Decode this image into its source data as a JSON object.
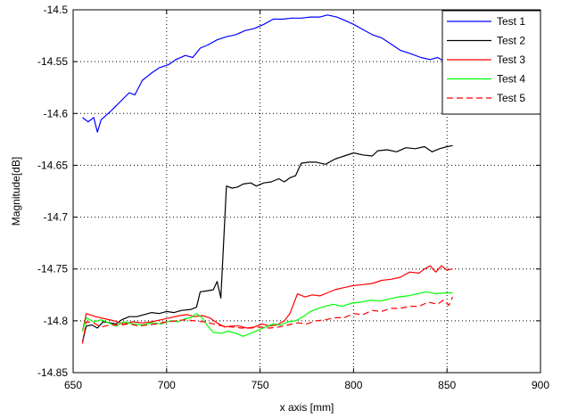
{
  "chart_data": {
    "type": "line",
    "title": "",
    "xlabel": "x axis [mm]",
    "ylabel": "Magnitude[dB]",
    "xlim": [
      650,
      900
    ],
    "ylim": [
      -14.85,
      -14.5
    ],
    "xticks": [
      650,
      700,
      750,
      800,
      850,
      900
    ],
    "xtick_labels": [
      "650",
      "700",
      "750",
      "800",
      "850",
      "900"
    ],
    "yticks": [
      -14.85,
      -14.8,
      -14.75,
      -14.7,
      -14.65,
      -14.6,
      -14.55,
      -14.5
    ],
    "ytick_labels": [
      "-14.85",
      "-14.8",
      "-14.75",
      "-14.7",
      "-14.65",
      "-14.6",
      "-14.55",
      "-14.5"
    ],
    "grid": true,
    "legend_position": "top-right",
    "series": [
      {
        "name": "Test 1",
        "color": "#0000ff",
        "dash": "solid",
        "points": [
          [
            655,
            -14.604
          ],
          [
            658,
            -14.608
          ],
          [
            661,
            -14.604
          ],
          [
            663,
            -14.618
          ],
          [
            665,
            -14.606
          ],
          [
            670,
            -14.598
          ],
          [
            675,
            -14.589
          ],
          [
            680,
            -14.58
          ],
          [
            683,
            -14.582
          ],
          [
            687,
            -14.568
          ],
          [
            692,
            -14.561
          ],
          [
            696,
            -14.556
          ],
          [
            701,
            -14.553
          ],
          [
            705,
            -14.548
          ],
          [
            710,
            -14.544
          ],
          [
            714,
            -14.546
          ],
          [
            718,
            -14.537
          ],
          [
            722,
            -14.534
          ],
          [
            727,
            -14.529
          ],
          [
            732,
            -14.526
          ],
          [
            737,
            -14.524
          ],
          [
            742,
            -14.52
          ],
          [
            747,
            -14.518
          ],
          [
            752,
            -14.514
          ],
          [
            757,
            -14.509
          ],
          [
            762,
            -14.509
          ],
          [
            767,
            -14.508
          ],
          [
            772,
            -14.508
          ],
          [
            777,
            -14.507
          ],
          [
            782,
            -14.507
          ],
          [
            786,
            -14.505
          ],
          [
            791,
            -14.507
          ],
          [
            795,
            -14.51
          ],
          [
            800,
            -14.514
          ],
          [
            805,
            -14.519
          ],
          [
            810,
            -14.524
          ],
          [
            815,
            -14.527
          ],
          [
            820,
            -14.533
          ],
          [
            825,
            -14.539
          ],
          [
            830,
            -14.542
          ],
          [
            836,
            -14.546
          ],
          [
            841,
            -14.548
          ],
          [
            845,
            -14.546
          ],
          [
            848,
            -14.549
          ]
        ]
      },
      {
        "name": "Test 2",
        "color": "#000000",
        "dash": "solid",
        "points": [
          [
            655,
            -14.82
          ],
          [
            657,
            -14.805
          ],
          [
            660,
            -14.804
          ],
          [
            663,
            -14.807
          ],
          [
            666,
            -14.801
          ],
          [
            670,
            -14.802
          ],
          [
            673,
            -14.803
          ],
          [
            676,
            -14.799
          ],
          [
            680,
            -14.796
          ],
          [
            684,
            -14.796
          ],
          [
            688,
            -14.794
          ],
          [
            692,
            -14.792
          ],
          [
            696,
            -14.793
          ],
          [
            700,
            -14.791
          ],
          [
            704,
            -14.792
          ],
          [
            708,
            -14.79
          ],
          [
            713,
            -14.789
          ],
          [
            716,
            -14.787
          ],
          [
            718,
            -14.772
          ],
          [
            722,
            -14.771
          ],
          [
            725,
            -14.77
          ],
          [
            727,
            -14.762
          ],
          [
            729,
            -14.778
          ],
          [
            732,
            -14.67
          ],
          [
            735,
            -14.672
          ],
          [
            738,
            -14.671
          ],
          [
            741,
            -14.668
          ],
          [
            745,
            -14.667
          ],
          [
            748,
            -14.67
          ],
          [
            752,
            -14.667
          ],
          [
            756,
            -14.666
          ],
          [
            760,
            -14.663
          ],
          [
            763,
            -14.666
          ],
          [
            766,
            -14.662
          ],
          [
            769,
            -14.66
          ],
          [
            772,
            -14.648
          ],
          [
            776,
            -14.647
          ],
          [
            780,
            -14.647
          ],
          [
            785,
            -14.649
          ],
          [
            790,
            -14.644
          ],
          [
            795,
            -14.641
          ],
          [
            800,
            -14.638
          ],
          [
            805,
            -14.64
          ],
          [
            810,
            -14.641
          ],
          [
            813,
            -14.636
          ],
          [
            818,
            -14.635
          ],
          [
            823,
            -14.637
          ],
          [
            828,
            -14.633
          ],
          [
            833,
            -14.634
          ],
          [
            838,
            -14.632
          ],
          [
            842,
            -14.637
          ],
          [
            846,
            -14.634
          ],
          [
            850,
            -14.632
          ],
          [
            853,
            -14.631
          ]
        ]
      },
      {
        "name": "Test 3",
        "color": "#ff0000",
        "dash": "solid",
        "points": [
          [
            655,
            -14.81
          ],
          [
            657,
            -14.793
          ],
          [
            662,
            -14.796
          ],
          [
            667,
            -14.798
          ],
          [
            672,
            -14.8
          ],
          [
            677,
            -14.803
          ],
          [
            682,
            -14.801
          ],
          [
            687,
            -14.802
          ],
          [
            692,
            -14.801
          ],
          [
            697,
            -14.799
          ],
          [
            702,
            -14.797
          ],
          [
            707,
            -14.795
          ],
          [
            711,
            -14.794
          ],
          [
            715,
            -14.796
          ],
          [
            719,
            -14.795
          ],
          [
            723,
            -14.797
          ],
          [
            727,
            -14.802
          ],
          [
            731,
            -14.806
          ],
          [
            735,
            -14.805
          ],
          [
            739,
            -14.805
          ],
          [
            743,
            -14.807
          ],
          [
            747,
            -14.806
          ],
          [
            751,
            -14.803
          ],
          [
            755,
            -14.805
          ],
          [
            759,
            -14.804
          ],
          [
            763,
            -14.8
          ],
          [
            766,
            -14.793
          ],
          [
            770,
            -14.774
          ],
          [
            774,
            -14.777
          ],
          [
            778,
            -14.775
          ],
          [
            782,
            -14.776
          ],
          [
            786,
            -14.773
          ],
          [
            790,
            -14.77
          ],
          [
            795,
            -14.768
          ],
          [
            800,
            -14.766
          ],
          [
            805,
            -14.765
          ],
          [
            810,
            -14.764
          ],
          [
            815,
            -14.761
          ],
          [
            820,
            -14.76
          ],
          [
            825,
            -14.758
          ],
          [
            830,
            -14.753
          ],
          [
            835,
            -14.754
          ],
          [
            838,
            -14.75
          ],
          [
            841,
            -14.747
          ],
          [
            844,
            -14.753
          ],
          [
            847,
            -14.747
          ],
          [
            850,
            -14.751
          ],
          [
            853,
            -14.75
          ]
        ]
      },
      {
        "name": "Test 4",
        "color": "#00ff00",
        "dash": "solid",
        "points": [
          [
            655,
            -14.81
          ],
          [
            657,
            -14.797
          ],
          [
            661,
            -14.801
          ],
          [
            665,
            -14.799
          ],
          [
            669,
            -14.802
          ],
          [
            673,
            -14.805
          ],
          [
            677,
            -14.801
          ],
          [
            682,
            -14.803
          ],
          [
            687,
            -14.804
          ],
          [
            692,
            -14.802
          ],
          [
            697,
            -14.803
          ],
          [
            702,
            -14.8
          ],
          [
            706,
            -14.801
          ],
          [
            710,
            -14.798
          ],
          [
            713,
            -14.797
          ],
          [
            716,
            -14.793
          ],
          [
            719,
            -14.797
          ],
          [
            722,
            -14.805
          ],
          [
            725,
            -14.811
          ],
          [
            729,
            -14.812
          ],
          [
            733,
            -14.81
          ],
          [
            737,
            -14.812
          ],
          [
            741,
            -14.815
          ],
          [
            745,
            -14.812
          ],
          [
            749,
            -14.809
          ],
          [
            753,
            -14.806
          ],
          [
            757,
            -14.803
          ],
          [
            761,
            -14.804
          ],
          [
            765,
            -14.801
          ],
          [
            769,
            -14.8
          ],
          [
            773,
            -14.796
          ],
          [
            777,
            -14.791
          ],
          [
            781,
            -14.788
          ],
          [
            785,
            -14.786
          ],
          [
            789,
            -14.784
          ],
          [
            794,
            -14.786
          ],
          [
            799,
            -14.783
          ],
          [
            804,
            -14.782
          ],
          [
            809,
            -14.78
          ],
          [
            814,
            -14.781
          ],
          [
            819,
            -14.779
          ],
          [
            824,
            -14.777
          ],
          [
            829,
            -14.776
          ],
          [
            834,
            -14.774
          ],
          [
            839,
            -14.772
          ],
          [
            844,
            -14.774
          ],
          [
            849,
            -14.773
          ],
          [
            853,
            -14.773
          ]
        ]
      },
      {
        "name": "Test 5",
        "color": "#ff0000",
        "dash": "dashed",
        "points": [
          [
            655,
            -14.822
          ],
          [
            657,
            -14.801
          ],
          [
            661,
            -14.802
          ],
          [
            665,
            -14.806
          ],
          [
            670,
            -14.804
          ],
          [
            675,
            -14.804
          ],
          [
            680,
            -14.803
          ],
          [
            685,
            -14.805
          ],
          [
            690,
            -14.804
          ],
          [
            695,
            -14.803
          ],
          [
            700,
            -14.801
          ],
          [
            705,
            -14.8
          ],
          [
            710,
            -14.799
          ],
          [
            715,
            -14.8
          ],
          [
            720,
            -14.801
          ],
          [
            725,
            -14.803
          ],
          [
            730,
            -14.805
          ],
          [
            735,
            -14.806
          ],
          [
            740,
            -14.807
          ],
          [
            745,
            -14.807
          ],
          [
            750,
            -14.806
          ],
          [
            755,
            -14.807
          ],
          [
            760,
            -14.806
          ],
          [
            765,
            -14.804
          ],
          [
            770,
            -14.802
          ],
          [
            775,
            -14.803
          ],
          [
            780,
            -14.8
          ],
          [
            785,
            -14.799
          ],
          [
            790,
            -14.797
          ],
          [
            795,
            -14.797
          ],
          [
            800,
            -14.793
          ],
          [
            805,
            -14.794
          ],
          [
            810,
            -14.79
          ],
          [
            815,
            -14.791
          ],
          [
            820,
            -14.788
          ],
          [
            825,
            -14.788
          ],
          [
            830,
            -14.786
          ],
          [
            835,
            -14.786
          ],
          [
            840,
            -14.782
          ],
          [
            845,
            -14.784
          ],
          [
            848,
            -14.78
          ],
          [
            851,
            -14.785
          ],
          [
            853,
            -14.777
          ]
        ]
      }
    ]
  }
}
